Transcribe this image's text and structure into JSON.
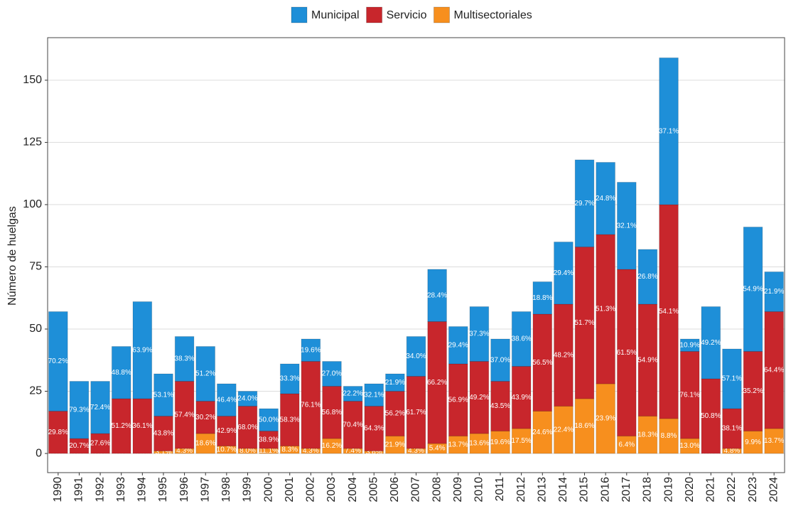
{
  "chart_data": {
    "type": "stacked_bar",
    "y_label": "Número de huelgas",
    "categories": [
      "1990",
      "1991",
      "1992",
      "1993",
      "1994",
      "1995",
      "1996",
      "1997",
      "1998",
      "1999",
      "2000",
      "2001",
      "2002",
      "2003",
      "2004",
      "2005",
      "2006",
      "2007",
      "2008",
      "2009",
      "2010",
      "2011",
      "2012",
      "2013",
      "2014",
      "2015",
      "2016",
      "2017",
      "2018",
      "2019",
      "2020",
      "2021",
      "2022",
      "2023",
      "2024"
    ],
    "series": [
      {
        "name": "Municipal",
        "color": "#1e8fd8",
        "values": [
          40,
          23,
          21,
          21,
          39,
          17,
          18,
          22,
          13,
          6,
          9,
          12,
          9,
          10,
          6,
          9,
          7,
          16,
          21,
          15,
          22,
          17,
          22,
          13,
          25,
          35,
          29,
          35,
          22,
          59,
          5,
          29,
          24,
          50,
          16
        ],
        "share_labels": [
          "70.2%",
          "79.3%",
          "72.4%",
          "48.8%",
          "63.9%",
          "53.1%",
          "38.3%",
          "51.2%",
          "46.4%",
          "24.0%",
          "50.0%",
          "33.3%",
          "19.6%",
          "27.0%",
          "22.2%",
          "32.1%",
          "21.9%",
          "34.0%",
          "28.4%",
          "29.4%",
          "37.3%",
          "37.0%",
          "38.6%",
          "18.8%",
          "29.4%",
          "29.7%",
          "24.8%",
          "32.1%",
          "26.8%",
          "37.1%",
          "10.9%",
          "49.2%",
          "57.1%",
          "54.9%",
          "21.9%"
        ]
      },
      {
        "name": "Servicio",
        "color": "#c8262c",
        "values": [
          17,
          6,
          8,
          22,
          22,
          14,
          27,
          13,
          12,
          17,
          7,
          21,
          35,
          21,
          19,
          18,
          18,
          29,
          49,
          29,
          29,
          20,
          25,
          39,
          41,
          61,
          60,
          67,
          45,
          86,
          35,
          30,
          16,
          32,
          47
        ],
        "share_labels": [
          "29.8%",
          "20.7%",
          "27.6%",
          "51.2%",
          "36.1%",
          "43.8%",
          "57.4%",
          "30.2%",
          "42.9%",
          "68.0%",
          "38.9%",
          "58.3%",
          "76.1%",
          "56.8%",
          "70.4%",
          "64.3%",
          "56.2%",
          "61.7%",
          "66.2%",
          "56.9%",
          "49.2%",
          "43.5%",
          "43.9%",
          "56.5%",
          "48.2%",
          "51.7%",
          "51.3%",
          "61.5%",
          "54.9%",
          "54.1%",
          "76.1%",
          "50.8%",
          "38.1%",
          "35.2%",
          "64.4%"
        ]
      },
      {
        "name": "Multisectoriales",
        "color": "#f78f1e",
        "values": [
          0,
          0,
          0,
          0,
          0,
          1,
          2,
          8,
          3,
          2,
          2,
          3,
          2,
          6,
          2,
          1,
          7,
          2,
          4,
          7,
          8,
          9,
          10,
          17,
          19,
          22,
          28,
          7,
          15,
          14,
          6,
          0,
          2,
          9,
          10
        ],
        "share_labels": [
          "0.0%",
          "0.0%",
          "0.0%",
          "0.0%",
          "0.0%",
          "3.1%",
          "4.3%",
          "18.6%",
          "10.7%",
          "8.0%",
          "11.1%",
          "8.3%",
          "4.3%",
          "16.2%",
          "7.4%",
          "3.6%",
          "21.9%",
          "4.3%",
          "5.4%",
          "13.7%",
          "13.6%",
          "19.6%",
          "17.5%",
          "24.6%",
          "22.4%",
          "18.6%",
          "23.9%",
          "6.4%",
          "18.3%",
          "8.8%",
          "13.0%",
          "0.0%",
          "4.8%",
          "9.9%",
          "13.7%"
        ]
      }
    ],
    "ylim": [
      -7.7,
      167.1
    ],
    "yticks": [
      0,
      25,
      50,
      75,
      100,
      125,
      150
    ],
    "grid": true,
    "legend": "top"
  }
}
